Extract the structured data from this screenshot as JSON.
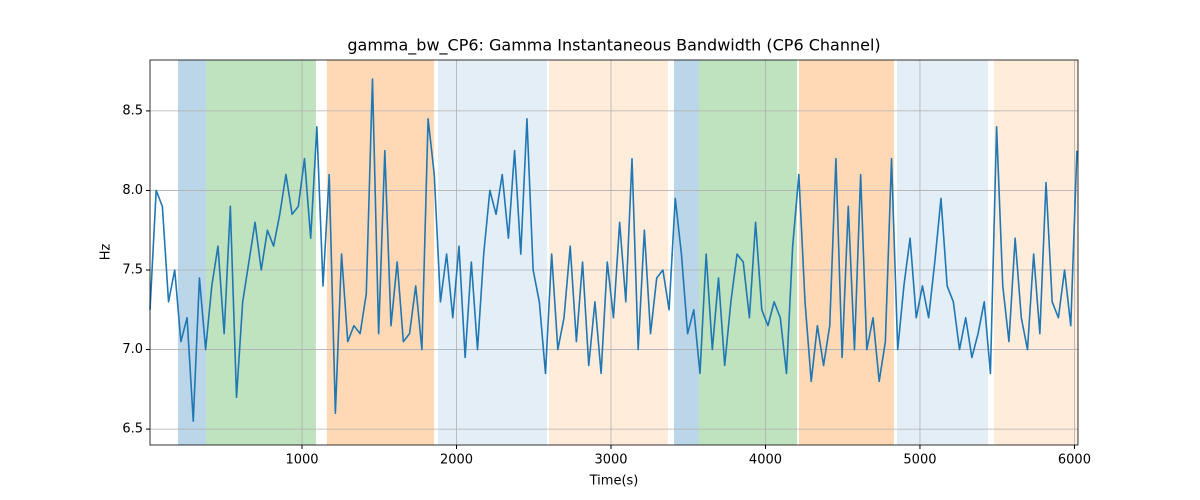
{
  "chart_data": {
    "type": "line",
    "title": "gamma_bw_CP6: Gamma Instantaneous Bandwidth (CP6 Channel)",
    "xlabel": "Time(s)",
    "ylabel": "Hz",
    "xlim": [
      16,
      6023
    ],
    "ylim": [
      6.4,
      8.82
    ],
    "xticks": [
      1000,
      2000,
      3000,
      4000,
      5000,
      6000
    ],
    "yticks": [
      6.5,
      {
        "value": 7,
        "label": "7.0"
      },
      7.5,
      {
        "value": 8,
        "label": "8.0"
      },
      8.5
    ],
    "grid": true,
    "spans": [
      {
        "x0": 197,
        "x1": 379,
        "color": "#1f77b4",
        "alpha": 0.3
      },
      {
        "x0": 379,
        "x1": 1090,
        "color": "#2ca02c",
        "alpha": 0.3
      },
      {
        "x0": 1161,
        "x1": 1855,
        "color": "#ff7f0e",
        "alpha": 0.3
      },
      {
        "x0": 1880,
        "x1": 2586,
        "color": "#1f77b4",
        "alpha": 0.12
      },
      {
        "x0": 2599,
        "x1": 3369,
        "color": "#ff7f0e",
        "alpha": 0.15
      },
      {
        "x0": 3408,
        "x1": 3570,
        "color": "#1f77b4",
        "alpha": 0.3
      },
      {
        "x0": 3570,
        "x1": 4204,
        "color": "#2ca02c",
        "alpha": 0.3
      },
      {
        "x0": 4217,
        "x1": 4832,
        "color": "#ff7f0e",
        "alpha": 0.3
      },
      {
        "x0": 4851,
        "x1": 5440,
        "color": "#1f77b4",
        "alpha": 0.12
      },
      {
        "x0": 5479,
        "x1": 6023,
        "color": "#ff7f0e",
        "alpha": 0.15
      }
    ],
    "x": [
      16,
      56,
      96,
      136,
      176,
      216,
      256,
      296,
      336,
      376,
      416,
      456,
      496,
      536,
      576,
      616,
      656,
      696,
      736,
      776,
      816,
      856,
      896,
      936,
      976,
      1016,
      1056,
      1096,
      1136,
      1176,
      1216,
      1256,
      1296,
      1336,
      1376,
      1416,
      1456,
      1496,
      1536,
      1576,
      1616,
      1656,
      1696,
      1736,
      1776,
      1816,
      1856,
      1896,
      1936,
      1976,
      2016,
      2056,
      2096,
      2136,
      2176,
      2216,
      2256,
      2296,
      2336,
      2376,
      2416,
      2456,
      2496,
      2536,
      2576,
      2616,
      2656,
      2696,
      2736,
      2776,
      2816,
      2856,
      2896,
      2936,
      2976,
      3016,
      3056,
      3096,
      3136,
      3176,
      3216,
      3256,
      3296,
      3336,
      3376,
      3416,
      3456,
      3496,
      3536,
      3576,
      3616,
      3656,
      3696,
      3736,
      3776,
      3816,
      3856,
      3896,
      3936,
      3976,
      4016,
      4056,
      4096,
      4136,
      4176,
      4216,
      4256,
      4296,
      4336,
      4376,
      4416,
      4456,
      4496,
      4536,
      4576,
      4616,
      4656,
      4696,
      4736,
      4776,
      4816,
      4856,
      4896,
      4936,
      4976,
      5016,
      5056,
      5096,
      5136,
      5176,
      5216,
      5256,
      5296,
      5336,
      5376,
      5416,
      5456,
      5496,
      5536,
      5576,
      5616,
      5656,
      5696,
      5736,
      5776,
      5816,
      5856,
      5896,
      5936,
      5976,
      6016
    ],
    "series": [
      {
        "color": "#1f77b4",
        "values": [
          7.25,
          8.0,
          7.9,
          7.3,
          7.5,
          7.05,
          7.2,
          6.55,
          7.45,
          7.0,
          7.4,
          7.65,
          7.1,
          7.9,
          6.7,
          7.3,
          7.55,
          7.8,
          7.5,
          7.75,
          7.65,
          7.85,
          8.1,
          7.85,
          7.9,
          8.2,
          7.7,
          8.4,
          7.4,
          8.1,
          6.6,
          7.6,
          7.05,
          7.15,
          7.1,
          7.35,
          8.7,
          7.1,
          8.25,
          7.15,
          7.55,
          7.05,
          7.1,
          7.4,
          7.0,
          8.45,
          8.1,
          7.3,
          7.6,
          7.2,
          7.65,
          6.95,
          7.55,
          7.0,
          7.6,
          8.0,
          7.85,
          8.1,
          7.7,
          8.25,
          7.6,
          8.45,
          7.5,
          7.3,
          6.85,
          7.6,
          7.0,
          7.2,
          7.65,
          7.05,
          7.55,
          6.9,
          7.3,
          6.85,
          7.55,
          7.2,
          7.8,
          7.3,
          8.2,
          7.0,
          7.75,
          7.1,
          7.45,
          7.5,
          7.25,
          7.95,
          7.6,
          7.1,
          7.25,
          6.85,
          7.6,
          7.0,
          7.45,
          6.9,
          7.3,
          7.6,
          7.55,
          7.2,
          7.8,
          7.25,
          7.15,
          7.3,
          7.2,
          6.85,
          7.65,
          8.1,
          7.3,
          6.8,
          7.15,
          6.9,
          7.15,
          8.2,
          6.95,
          7.9,
          7.0,
          8.1,
          7.0,
          7.2,
          6.8,
          7.05,
          8.2,
          7.0,
          7.4,
          7.7,
          7.2,
          7.4,
          7.2,
          7.55,
          7.95,
          7.4,
          7.3,
          7.0,
          7.2,
          6.95,
          7.1,
          7.3,
          6.85,
          8.4,
          7.4,
          7.05,
          7.7,
          7.2,
          7.0,
          7.6,
          7.1,
          8.05,
          7.3,
          7.2,
          7.5,
          7.15,
          8.25
        ]
      }
    ]
  }
}
